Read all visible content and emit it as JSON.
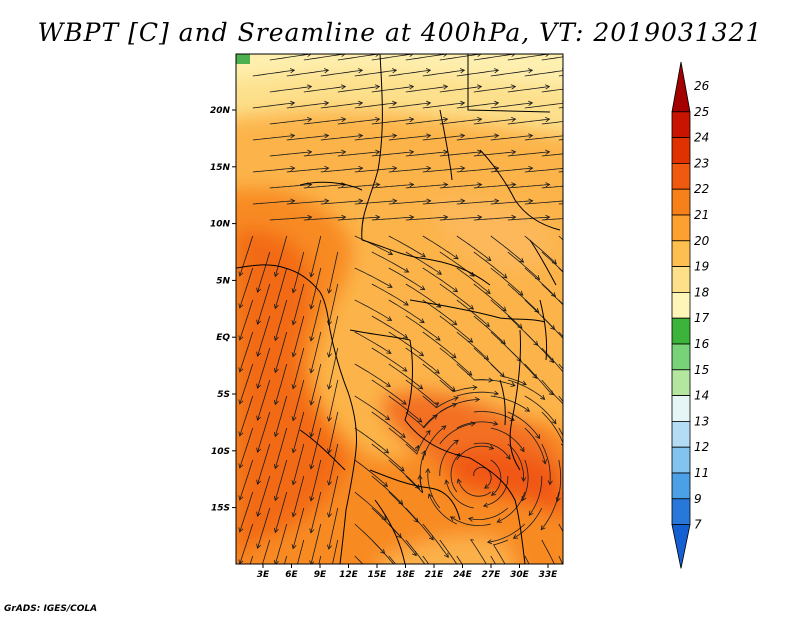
{
  "title": "WBPT [C] and Sreamline at 400hPa, VT: 2019031321",
  "credit": "GrADS: IGES/COLA",
  "map": {
    "lat_labels": [
      "20N",
      "15N",
      "10N",
      "5N",
      "EQ",
      "5S",
      "10S",
      "15S"
    ],
    "lon_labels": [
      "3E",
      "6E",
      "9E",
      "12E",
      "15E",
      "18E",
      "21E",
      "24E",
      "27E",
      "30E",
      "33E"
    ]
  },
  "colorbar": {
    "labels": [
      "26",
      "25",
      "24",
      "23",
      "22",
      "21",
      "20",
      "19",
      "18",
      "17",
      "16",
      "15",
      "14",
      "13",
      "12",
      "11",
      "9",
      "7"
    ],
    "colors": [
      "#a50000",
      "#c81400",
      "#e03200",
      "#f05a10",
      "#f88018",
      "#fca030",
      "#fdc050",
      "#fee08a",
      "#fef5b8",
      "#3cb43c",
      "#78d278",
      "#b4e6a0",
      "#e6f5f5",
      "#b4dcf5",
      "#82c3f0",
      "#4ba0e6",
      "#2878dc",
      "#1460d2"
    ]
  }
}
